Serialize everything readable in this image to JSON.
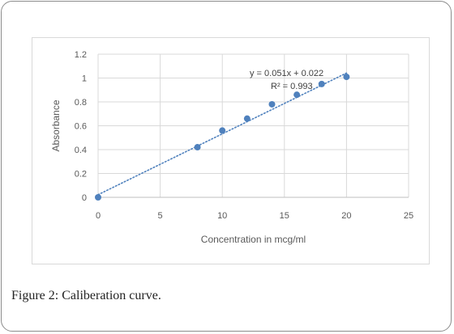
{
  "figure": {
    "caption_label": "Figure 2:",
    "caption_text": " Caliberation curve."
  },
  "chart_data": {
    "type": "scatter",
    "title": "",
    "xlabel": "Concentration in mcg/ml",
    "ylabel": "Absorbance",
    "xlim": [
      0,
      25
    ],
    "ylim": [
      0,
      1.2
    ],
    "x_ticks": [
      "0",
      "5",
      "10",
      "15",
      "20",
      "25"
    ],
    "y_ticks": [
      "0",
      "0.2",
      "0.4",
      "0.6",
      "0.8",
      "1",
      "1.2"
    ],
    "grid": true,
    "legend": "none",
    "series": [
      {
        "x": [
          0,
          8,
          10,
          12,
          14,
          16,
          18,
          20
        ],
        "y": [
          0,
          0.42,
          0.56,
          0.66,
          0.78,
          0.86,
          0.95,
          1.01
        ],
        "color": "#4f81bd"
      }
    ],
    "trendline": {
      "type": "linear",
      "slope": 0.051,
      "intercept": 0.022,
      "equation_label": "y = 0.051x + 0.022",
      "r2_label": "R² = 0.993",
      "style": "dotted",
      "color": "#4f81bd"
    }
  }
}
